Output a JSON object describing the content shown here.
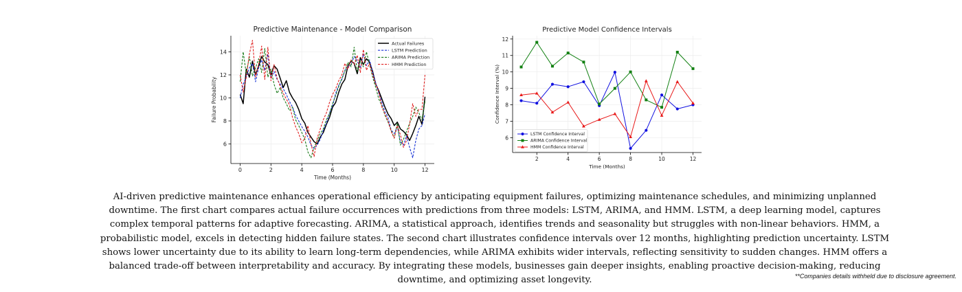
{
  "chart_data": [
    {
      "type": "line",
      "title": "Predictive Maintenance - Model Comparison",
      "xlabel": "Time (Months)",
      "ylabel": "Failure Probability",
      "xlim": [
        -0.6,
        12.6
      ],
      "ylim": [
        4.3,
        15.4
      ],
      "xticks": [
        0,
        2,
        4,
        6,
        8,
        10,
        12
      ],
      "yticks": [
        6,
        8,
        10,
        12,
        14
      ],
      "grid": true,
      "legend_position": "top-right",
      "series": [
        {
          "name": "Actual Failures",
          "color": "#000000",
          "dash": "solid",
          "width": 1.5,
          "x": [
            0,
            0.2,
            0.4,
            0.6,
            0.8,
            1,
            1.2,
            1.4,
            1.6,
            1.8,
            2,
            2.2,
            2.4,
            2.6,
            2.8,
            3,
            3.2,
            3.4,
            3.6,
            3.8,
            4,
            4.2,
            4.4,
            4.6,
            4.8,
            5,
            5.2,
            5.4,
            5.6,
            5.8,
            6,
            6.2,
            6.4,
            6.6,
            6.8,
            7,
            7.2,
            7.4,
            7.6,
            7.8,
            8,
            8.2,
            8.4,
            8.6,
            8.8,
            9,
            9.2,
            9.4,
            9.6,
            9.8,
            10,
            10.2,
            10.4,
            10.6,
            10.8,
            11,
            11.2,
            11.4,
            11.6,
            11.8,
            12
          ],
          "y": [
            10.3,
            9.5,
            12.5,
            11.8,
            13.2,
            12.0,
            12.8,
            13.6,
            13.1,
            12.9,
            12.0,
            12.8,
            12.5,
            11.7,
            10.9,
            11.5,
            10.5,
            10.0,
            9.6,
            9.0,
            8.2,
            7.8,
            7.0,
            6.6,
            6.2,
            6.0,
            6.6,
            7.0,
            7.7,
            8.3,
            9.2,
            9.6,
            10.5,
            11.2,
            11.6,
            12.8,
            13.2,
            13.0,
            12.1,
            13.5,
            12.9,
            13.4,
            13.1,
            12.3,
            11.2,
            10.6,
            9.9,
            9.2,
            8.6,
            8.2,
            7.6,
            7.9,
            7.3,
            7.1,
            6.8,
            6.3,
            6.9,
            7.6,
            8.4,
            7.7,
            10.1
          ]
        },
        {
          "name": "LSTM Prediction",
          "color": "#1a35d6",
          "dash": "dashed",
          "width": 1.1,
          "x": [
            0,
            0.2,
            0.4,
            0.6,
            0.8,
            1,
            1.2,
            1.4,
            1.6,
            1.8,
            2,
            2.2,
            2.4,
            2.6,
            2.8,
            3,
            3.2,
            3.4,
            3.6,
            3.8,
            4,
            4.2,
            4.4,
            4.6,
            4.8,
            5,
            5.2,
            5.4,
            5.6,
            5.8,
            6,
            6.2,
            6.4,
            6.6,
            6.8,
            7,
            7.2,
            7.4,
            7.6,
            7.8,
            8,
            8.2,
            8.4,
            8.6,
            8.8,
            9,
            9.2,
            9.4,
            9.6,
            9.8,
            10,
            10.2,
            10.4,
            10.6,
            10.8,
            11,
            11.2,
            11.4,
            11.6,
            11.8,
            12
          ],
          "y": [
            10.0,
            11.2,
            11.8,
            12.6,
            13.0,
            11.4,
            12.6,
            13.3,
            12.4,
            13.8,
            11.7,
            12.3,
            11.6,
            11.2,
            10.8,
            10.3,
            9.7,
            9.2,
            8.5,
            8.0,
            7.5,
            7.1,
            6.6,
            5.9,
            5.6,
            5.9,
            6.4,
            7.2,
            7.8,
            8.7,
            9.3,
            10.4,
            11.1,
            11.6,
            12.4,
            12.7,
            12.9,
            13.6,
            13.2,
            12.6,
            13.8,
            12.8,
            13.3,
            12.2,
            11.3,
            10.4,
            9.6,
            8.8,
            8.3,
            7.2,
            6.9,
            7.5,
            6.2,
            5.9,
            6.7,
            5.7,
            4.8,
            6.3,
            7.3,
            7.6,
            8.6
          ]
        },
        {
          "name": "ARIMA Prediction",
          "color": "#1a7a1a",
          "dash": "dashed",
          "width": 1.1,
          "x": [
            0,
            0.2,
            0.4,
            0.6,
            0.8,
            1,
            1.2,
            1.4,
            1.6,
            1.8,
            2,
            2.2,
            2.4,
            2.6,
            2.8,
            3,
            3.2,
            3.4,
            3.6,
            3.8,
            4,
            4.2,
            4.4,
            4.6,
            4.8,
            5,
            5.2,
            5.4,
            5.6,
            5.8,
            6,
            6.2,
            6.4,
            6.6,
            6.8,
            7,
            7.2,
            7.4,
            7.6,
            7.8,
            8,
            8.2,
            8.4,
            8.6,
            8.8,
            9,
            9.2,
            9.4,
            9.6,
            9.8,
            10,
            10.2,
            10.4,
            10.6,
            10.8,
            11,
            11.2,
            11.4,
            11.6,
            11.8,
            12
          ],
          "y": [
            11.4,
            14.0,
            12.1,
            13.6,
            11.9,
            12.6,
            13.4,
            12.2,
            14.3,
            11.8,
            12.5,
            11.2,
            10.4,
            10.9,
            10.0,
            9.5,
            8.9,
            9.2,
            8.1,
            7.6,
            7.0,
            6.4,
            5.3,
            4.8,
            5.7,
            6.3,
            6.9,
            7.3,
            8.1,
            8.6,
            9.5,
            10.2,
            11.0,
            11.7,
            12.3,
            13.1,
            12.7,
            14.4,
            12.3,
            13.2,
            12.7,
            14.0,
            12.9,
            11.8,
            10.9,
            9.9,
            9.3,
            8.5,
            7.9,
            7.2,
            6.5,
            7.8,
            5.9,
            6.4,
            7.1,
            7.8,
            8.4,
            9.2,
            8.7,
            8.1,
            9.7
          ]
        },
        {
          "name": "HMM Prediction",
          "color": "#e02020",
          "dash": "dashed",
          "width": 1.1,
          "x": [
            0,
            0.2,
            0.4,
            0.6,
            0.8,
            1,
            1.2,
            1.4,
            1.6,
            1.8,
            2,
            2.2,
            2.4,
            2.6,
            2.8,
            3,
            3.2,
            3.4,
            3.6,
            3.8,
            4,
            4.2,
            4.4,
            4.6,
            4.8,
            5,
            5.2,
            5.4,
            5.6,
            5.8,
            6,
            6.2,
            6.4,
            6.6,
            6.8,
            7,
            7.2,
            7.4,
            7.6,
            7.8,
            8,
            8.2,
            8.4,
            8.6,
            8.8,
            9,
            9.2,
            9.4,
            9.6,
            9.8,
            10,
            10.2,
            10.4,
            10.6,
            10.8,
            11,
            11.2,
            11.4,
            11.6,
            11.8,
            12
          ],
          "y": [
            12.0,
            10.5,
            11.8,
            13.8,
            15.0,
            11.8,
            12.9,
            14.5,
            11.6,
            14.4,
            11.5,
            12.9,
            11.7,
            11.0,
            10.4,
            9.9,
            9.4,
            8.3,
            7.5,
            6.9,
            6.1,
            6.5,
            7.6,
            6.0,
            4.9,
            6.5,
            7.3,
            8.1,
            8.7,
            9.6,
            10.3,
            10.8,
            11.5,
            12.0,
            13.0,
            12.5,
            13.3,
            12.9,
            13.7,
            12.2,
            14.2,
            12.4,
            13.0,
            12.0,
            11.2,
            10.5,
            9.2,
            8.6,
            8.0,
            7.1,
            6.5,
            7.6,
            6.8,
            5.7,
            6.3,
            7.7,
            9.5,
            8.4,
            9.0,
            9.0,
            12.0
          ]
        }
      ]
    },
    {
      "type": "line",
      "title": "Predictive Model Confidence Intervals",
      "xlabel": "Time (Months)",
      "ylabel": "Confidence Interval (%)",
      "xlim": [
        0.45,
        12.55
      ],
      "ylim": [
        5.1,
        12.2
      ],
      "xticks": [
        2,
        4,
        6,
        8,
        10,
        12
      ],
      "yticks": [
        6,
        7,
        8,
        9,
        10,
        11,
        12
      ],
      "grid": true,
      "legend_position": "lower-left",
      "categories": [
        1,
        2,
        3,
        4,
        5,
        6,
        7,
        8,
        9,
        10,
        11,
        12
      ],
      "series": [
        {
          "name": "LSTM Confidence Interval",
          "color": "#1010e0",
          "marker": "circle",
          "values": [
            8.25,
            8.1,
            9.25,
            9.1,
            9.4,
            7.95,
            9.98,
            5.35,
            6.45,
            8.6,
            7.75,
            8.0
          ]
        },
        {
          "name": "ARIMA Confidence Interval",
          "color": "#128012",
          "marker": "square",
          "values": [
            10.3,
            11.8,
            10.35,
            11.15,
            10.6,
            8.05,
            9.0,
            10.0,
            8.3,
            7.85,
            11.2,
            10.2
          ]
        },
        {
          "name": "HMM Confidence Interval",
          "color": "#e81818",
          "marker": "triangle",
          "values": [
            8.6,
            8.7,
            7.55,
            8.15,
            6.7,
            7.1,
            7.45,
            6.05,
            9.45,
            7.35,
            9.4,
            8.1
          ]
        }
      ]
    }
  ],
  "description": "AI-driven predictive maintenance enhances operational efficiency by anticipating equipment failures, optimizing maintenance schedules, and minimizing unplanned downtime. The first chart compares actual failure occurrences with predictions from three models: LSTM, ARIMA, and HMM. LSTM, a deep learning model, captures complex temporal patterns for adaptive forecasting. ARIMA, a statistical approach, identifies trends and seasonality but struggles with non-linear behaviors. HMM, a probabilistic model, excels in detecting hidden failure states. The second chart illustrates confidence intervals over 12 months, highlighting prediction uncertainty. LSTM shows lower uncertainty due to its ability to learn long-term dependencies, while ARIMA exhibits wider intervals, reflecting sensitivity to sudden changes. HMM offers a balanced trade-off between interpretability and accuracy. By integrating these models, businesses gain deeper insights, enabling proactive decision-making, reducing downtime, and optimizing asset longevity.",
  "disclaimer": "**Companies details withheld due to disclosure agreement."
}
